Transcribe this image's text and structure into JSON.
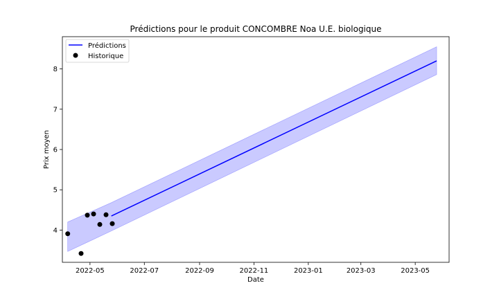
{
  "chart_data": {
    "type": "line",
    "title": "Prédictions pour le produit CONCOMBRE Noa U.E. biologique",
    "xlabel": "Date",
    "ylabel": "Prix moyen",
    "xlim": [
      "2022-03-31",
      "2023-06-08"
    ],
    "ylim": [
      3.2,
      8.8
    ],
    "x_ticks": [
      "2022-05",
      "2022-07",
      "2022-09",
      "2022-11",
      "2023-01",
      "2023-03",
      "2023-05"
    ],
    "x_tick_labels": [
      "2022-05",
      "2022-07",
      "2022-09",
      "2022-11",
      "2023-01",
      "2023-03",
      "2023-05"
    ],
    "y_ticks": [
      4,
      5,
      6,
      7,
      8
    ],
    "grid": false,
    "legend_placement": "top-left",
    "legend": [
      "Prédictions",
      "Historique"
    ],
    "colors": {
      "prediction": "#0000ff",
      "band": "#b3b3ff",
      "history": "#000000"
    },
    "series": [
      {
        "name": "Prédictions",
        "kind": "line",
        "x": [
          "2022-05-25",
          "2023-05-25"
        ],
        "y": [
          4.35,
          8.2
        ]
      },
      {
        "name": "Historique",
        "kind": "scatter",
        "x": [
          "2022-04-06",
          "2022-04-21",
          "2022-04-28",
          "2022-05-05",
          "2022-05-12",
          "2022-05-19",
          "2022-05-26"
        ],
        "y": [
          3.91,
          3.42,
          4.37,
          4.4,
          4.14,
          4.38,
          4.16
        ]
      }
    ],
    "band": {
      "x": [
        "2022-04-06",
        "2022-05-25",
        "2023-05-25"
      ],
      "lower": [
        3.47,
        3.98,
        7.86
      ],
      "upper": [
        4.2,
        4.68,
        8.55
      ]
    }
  }
}
